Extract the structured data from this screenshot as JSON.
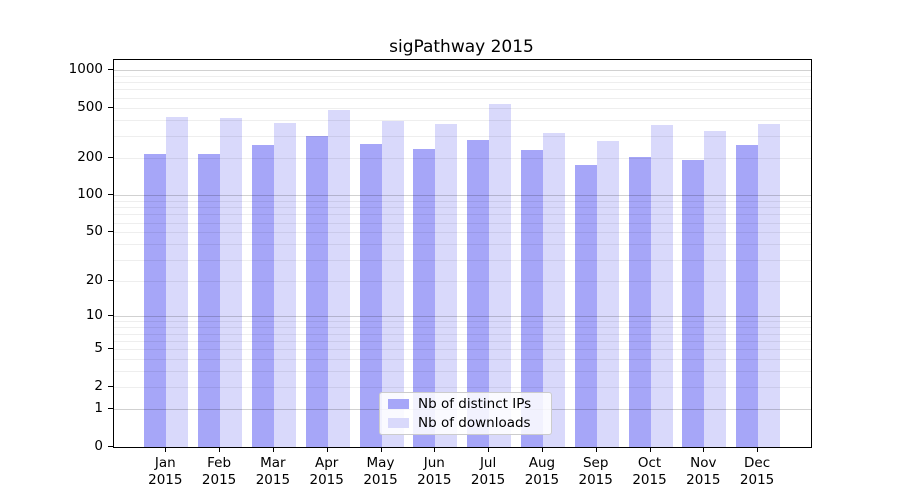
{
  "title": "sigPathway 2015",
  "chart_data": {
    "type": "bar",
    "title": "sigPathway 2015",
    "categories": [
      "Jan",
      "Feb",
      "Mar",
      "Apr",
      "May",
      "Jun",
      "Jul",
      "Aug",
      "Sep",
      "Oct",
      "Nov",
      "Dec"
    ],
    "year_label": "2015",
    "series": [
      {
        "name": "Nb of distinct IPs",
        "color": "#a6a6f8",
        "values": [
          215,
          212,
          250,
          296,
          258,
          234,
          279,
          228,
          174,
          203,
          191,
          250
        ]
      },
      {
        "name": "Nb of downloads",
        "color": "#d9d9fb",
        "values": [
          425,
          417,
          379,
          478,
          391,
          370,
          540,
          315,
          272,
          366,
          327,
          374
        ]
      }
    ],
    "xlabel": "",
    "ylabel": "",
    "yscale": "log10(1+x)",
    "y_ticks": [
      1000,
      500,
      200,
      100,
      50,
      20,
      10,
      5,
      2,
      1,
      0
    ],
    "ylim": [
      0,
      1200
    ],
    "grid": "both, drawn over bars",
    "legend_position": "lower center"
  },
  "colors": {
    "bar_dark": "#a6a6f8",
    "bar_light": "#d9d9fb",
    "grid_minor": "#ececec",
    "grid_major": "#d1d1d1",
    "axis": "#000000",
    "legend_border": "#cccccc"
  }
}
